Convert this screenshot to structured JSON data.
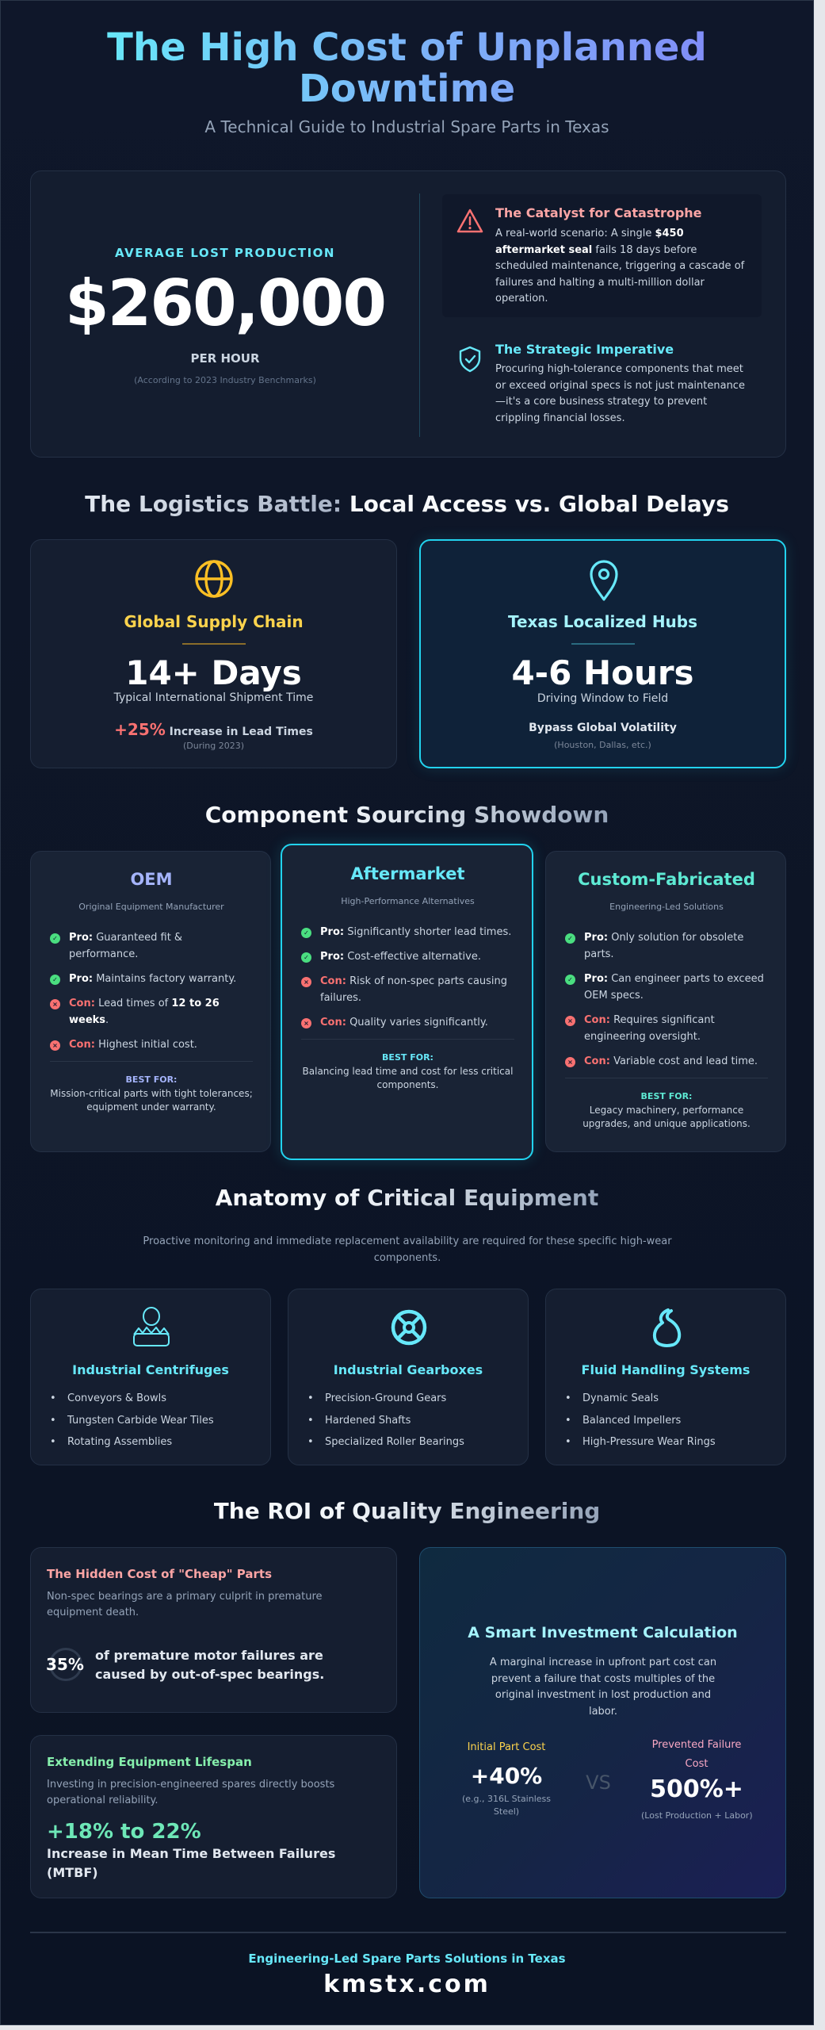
{
  "header": {
    "title": "The High Cost of Unplanned Downtime",
    "subtitle": "A Technical Guide to Industrial Spare Parts in Texas"
  },
  "hero": {
    "label": "AVERAGE LOST PRODUCTION",
    "value": "$260,000",
    "unit": "PER HOUR",
    "source": "(According to 2023 Industry Benchmarks)",
    "catalyst": {
      "icon": "warning-triangle-icon",
      "title": "The Catalyst for Catastrophe",
      "body_pre": "A real-world scenario: A single ",
      "body_bold": "$450 aftermarket seal",
      "body_post": " fails 18 days before scheduled maintenance, triggering a cascade of failures and halting a multi-million dollar operation."
    },
    "strategic": {
      "icon": "shield-check-icon",
      "title": "The Strategic Imperative",
      "body": "Procuring high-tolerance components that meet or exceed original specs is not just maintenance—it's a core business strategy to prevent crippling financial losses."
    }
  },
  "logistics": {
    "heading_part1": "The Logistics Battle:",
    "heading_part2": " Local Access vs. Global Delays",
    "global": {
      "icon": "globe-icon",
      "title": "Global Supply Chain",
      "value": "14+ Days",
      "caption": "Typical International Shipment Time",
      "stat": "+25%",
      "stat_text": " Increase in Lead Times",
      "note": "(During 2023)"
    },
    "local": {
      "icon": "map-pin-icon",
      "title": "Texas Localized Hubs",
      "value": "4-6 Hours",
      "caption": "Driving Window to Field",
      "stat_text": "Bypass Global Volatility",
      "note": "(Houston, Dallas, etc.)"
    }
  },
  "sourcing": {
    "heading": "Component Sourcing Showdown",
    "cards": [
      {
        "title": "OEM",
        "subtitle": "Original Equipment Manufacturer",
        "accent": "#a5b4fc",
        "items": [
          {
            "type": "pro",
            "label": "Pro:",
            "text": " Guaranteed fit & performance."
          },
          {
            "type": "pro",
            "label": "Pro:",
            "text": " Maintains factory warranty."
          },
          {
            "type": "con",
            "label": "Con:",
            "text": " Lead times of ",
            "bold": "12 to 26 weeks",
            "after": "."
          },
          {
            "type": "con",
            "label": "Con:",
            "text": " Highest initial cost."
          }
        ],
        "best_for_label": "BEST FOR:",
        "best_for": "Mission-critical parts with tight tolerances; equipment under warranty."
      },
      {
        "title": "Aftermarket",
        "subtitle": "High-Performance Alternatives",
        "accent": "#67e8f9",
        "items": [
          {
            "type": "pro",
            "label": "Pro:",
            "text": " Significantly shorter lead times."
          },
          {
            "type": "pro",
            "label": "Pro:",
            "text": " Cost-effective alternative."
          },
          {
            "type": "con",
            "label": "Con:",
            "text": " Risk of non-spec parts causing failures."
          },
          {
            "type": "con",
            "label": "Con:",
            "text": " Quality varies significantly."
          }
        ],
        "best_for_label": "BEST FOR:",
        "best_for": "Balancing lead time and cost for less critical components."
      },
      {
        "title": "Custom-Fabricated",
        "subtitle": "Engineering-Led Solutions",
        "accent": "#5eead4",
        "items": [
          {
            "type": "pro",
            "label": "Pro:",
            "text": " Only solution for obsolete parts."
          },
          {
            "type": "pro",
            "label": "Pro:",
            "text": " Can engineer parts to exceed OEM specs."
          },
          {
            "type": "con",
            "label": "Con:",
            "text": " Requires significant engineering oversight."
          },
          {
            "type": "con",
            "label": "Con:",
            "text": " Variable cost and lead time."
          }
        ],
        "best_for_label": "BEST FOR:",
        "best_for": "Legacy machinery, performance upgrades, and unique applications."
      }
    ]
  },
  "anatomy": {
    "heading": "Anatomy of Critical Equipment",
    "description": "Proactive monitoring and immediate replacement availability are required for these specific high-wear components.",
    "cards": [
      {
        "icon": "centrifuge-icon",
        "title": "Industrial Centrifuges",
        "items": [
          "Conveyors & Bowls",
          "Tungsten Carbide Wear Tiles",
          "Rotating Assemblies"
        ]
      },
      {
        "icon": "gear-icon",
        "title": "Industrial Gearboxes",
        "items": [
          "Precision-Ground Gears",
          "Hardened Shafts",
          "Specialized Roller Bearings"
        ]
      },
      {
        "icon": "fluid-drop-icon",
        "title": "Fluid Handling Systems",
        "items": [
          "Dynamic Seals",
          "Balanced Impellers",
          "High-Pressure Wear Rings"
        ]
      }
    ]
  },
  "roi": {
    "heading": "The ROI of Quality Engineering",
    "hidden_cost": {
      "title": "The Hidden Cost of \"Cheap\" Parts",
      "description": "Non-spec bearings are a primary culprit in premature equipment death.",
      "stat": "35%",
      "stat_text": "of premature motor failures are caused by out-of-spec bearings."
    },
    "lifespan": {
      "title": "Extending Equipment Lifespan",
      "description": "Investing in precision-engineered spares directly boosts operational reliability.",
      "stat": "+18% to 22%",
      "stat_text": "Increase in Mean Time Between Failures (MTBF)"
    },
    "investment": {
      "title": "A Smart Investment Calculation",
      "description": "A marginal increase in upfront part cost can prevent a failure that costs multiples of the original investment in lost production and labor.",
      "left_label": "Initial Part Cost",
      "left_value": "+40%",
      "left_note": "(e.g., 316L Stainless Steel)",
      "vs": "VS",
      "right_label": "Prevented Failure Cost",
      "right_value": "500%+",
      "right_note": "(Lost Production + Labor)"
    }
  },
  "footer": {
    "tagline": "Engineering-Led Spare Parts Solutions in Texas",
    "domain": "kmstx.com"
  },
  "colors": {
    "cyan": "#67e8f9",
    "amber": "#fbbf24",
    "red": "#f87171",
    "green": "#4ade80",
    "background": "#0f172a"
  }
}
